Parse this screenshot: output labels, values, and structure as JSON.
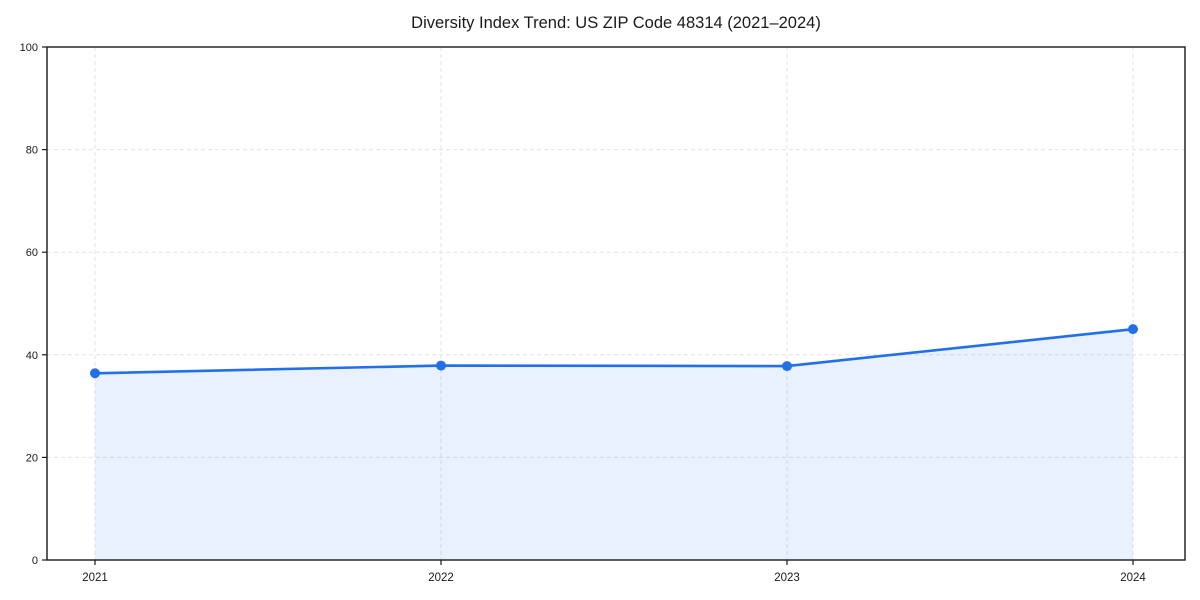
{
  "chart_data": {
    "type": "area",
    "title": "Diversity Index Trend: US ZIP Code 48314 (2021–2024)",
    "x": [
      "2021",
      "2022",
      "2023",
      "2024"
    ],
    "values": [
      36.4,
      37.9,
      37.8,
      45.0
    ],
    "series_name": "Diversity Index",
    "xlabel": "",
    "ylabel": "",
    "ylim": [
      0,
      100
    ],
    "y_ticks": [
      0,
      20,
      40,
      60,
      80,
      100
    ],
    "grid": "dashed",
    "legend": "none",
    "marker": "circle",
    "colors": {
      "line": "#2270e8",
      "fill": "rgba(34,113,232,0.10)",
      "grid": "#e3e3e3",
      "axis": "#1a1a1a",
      "text": "#1a1a1a",
      "background": "#ffffff"
    }
  }
}
